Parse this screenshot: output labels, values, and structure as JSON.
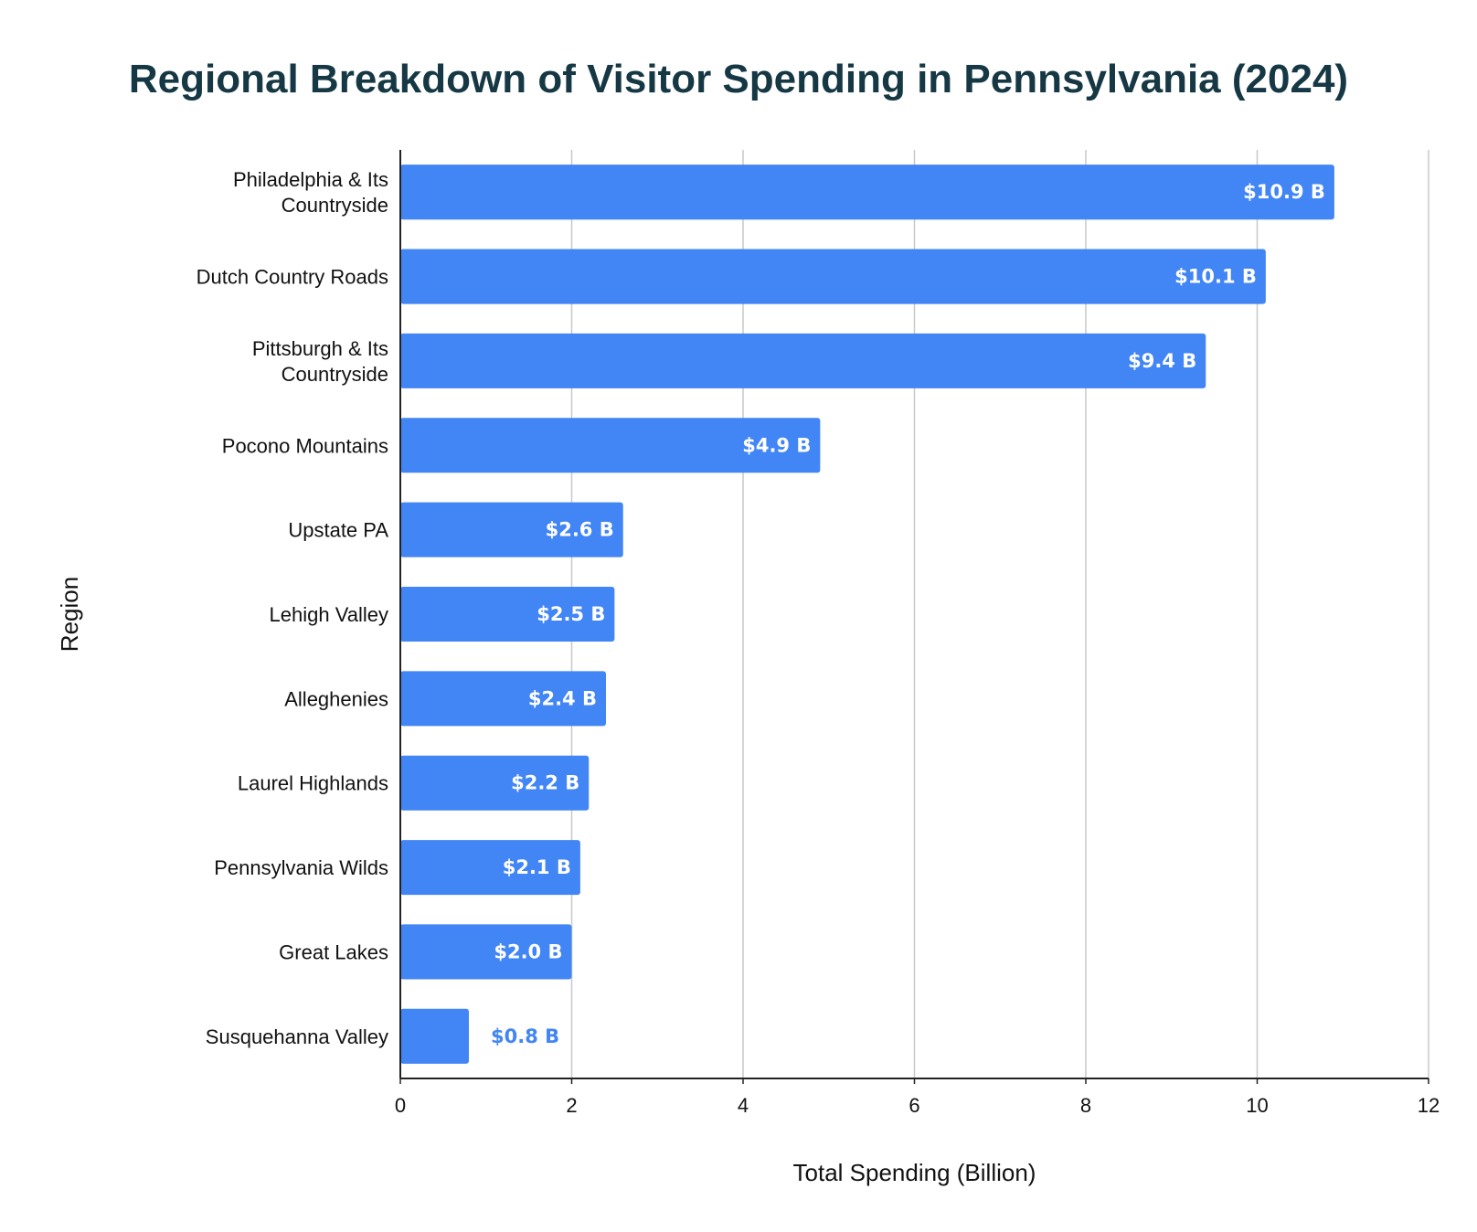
{
  "chart_data": {
    "type": "bar",
    "orientation": "horizontal",
    "title": "Regional Breakdown of Visitor Spending in Pennsylvania (2024)",
    "xlabel": "Total Spending (Billion)",
    "ylabel": "Region",
    "xlim": [
      0,
      12
    ],
    "xticks": [
      0,
      2,
      4,
      6,
      8,
      10,
      12
    ],
    "grid": "vertical",
    "legend": "none",
    "bar_color": "#4285F4",
    "categories": [
      [
        "Philadelphia & Its",
        "Countryside"
      ],
      [
        "Dutch Country Roads"
      ],
      [
        "Pittsburgh & Its",
        "Countryside"
      ],
      [
        "Pocono Mountains"
      ],
      [
        "Upstate PA"
      ],
      [
        "Lehigh Valley"
      ],
      [
        "Alleghenies"
      ],
      [
        "Laurel Highlands"
      ],
      [
        "Pennsylvania Wilds"
      ],
      [
        "Great Lakes"
      ],
      [
        "Susquehanna Valley"
      ]
    ],
    "values": [
      10.9,
      10.1,
      9.4,
      4.9,
      2.6,
      2.5,
      2.4,
      2.2,
      2.1,
      2.0,
      0.8
    ],
    "data_labels": [
      "$10.9 B",
      "$10.1 B",
      "$9.4 B",
      "$4.9 B",
      "$2.6 B",
      "$2.5 B",
      "$2.4 B",
      "$2.2 B",
      "$2.1 B",
      "$2.0 B",
      "$0.8 B"
    ]
  }
}
